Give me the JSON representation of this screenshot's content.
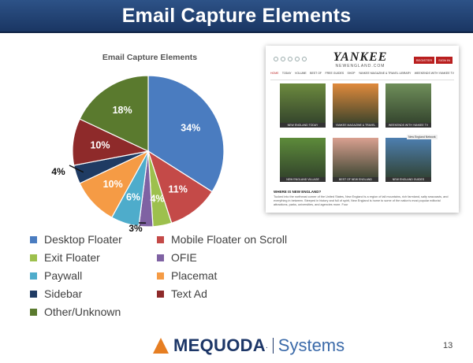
{
  "header": {
    "title": "Email Capture Elements"
  },
  "chart_data": {
    "type": "pie",
    "title": "Email Capture Elements",
    "start_angle_deg": 0,
    "direction": "clockwise",
    "legend_position": "bottom",
    "slices": [
      {
        "label": "Desktop Floater",
        "value": 34,
        "display": "34%",
        "color": "#4a7cc0"
      },
      {
        "label": "Mobile Floater on Scroll",
        "value": 11,
        "display": "11%",
        "color": "#c44a48"
      },
      {
        "label": "Exit Floater",
        "value": 4,
        "display": "4%",
        "color": "#9dc04d"
      },
      {
        "label": "OFIE",
        "value": 3,
        "display": "3%",
        "color": "#7f62a3"
      },
      {
        "label": "Paywall",
        "value": 6,
        "display": "6%",
        "color": "#4eaccb"
      },
      {
        "label": "Placemat",
        "value": 10,
        "display": "10%",
        "color": "#f59b45"
      },
      {
        "label": "Sidebar",
        "value": 4,
        "display": "4%",
        "color": "#1f3b63"
      },
      {
        "label": "Text Ad",
        "value": 10,
        "display": "10%",
        "color": "#8e2a2a"
      },
      {
        "label": "Other/Unknown",
        "value": 18,
        "display": "18%",
        "color": "#5a7a2e"
      }
    ]
  },
  "screenshot": {
    "logo": "YANKEE",
    "logo_sub": "NEWENGLAND.COM",
    "buttons": [
      "REGISTER",
      "SIGN IN"
    ],
    "nav": [
      "HOME",
      "TODAY",
      "VOLUME",
      "BEST OF",
      "FREE GUIDES",
      "SHOP",
      "YANKEE MAGAZINE & TRAVEL LIBRARY",
      "WEEKENDS WITH YANKEE TV"
    ],
    "tiles": [
      {
        "caption": "NEW ENGLAND TODAY",
        "color": "#6c8a3e"
      },
      {
        "caption": "YANKEE MAGAZINE & TRAVEL LIBRARY",
        "color": "#e08a3c"
      },
      {
        "caption": "WEEKENDS WITH YANKEE TV",
        "color": "#6f8f5a"
      },
      {
        "caption": "NEW ENGLAND VILLAGE",
        "color": "#5d8b3a"
      },
      {
        "caption": "BEST OF NEW ENGLAND",
        "color": "#d9a090"
      },
      {
        "caption": "NEW ENGLAND GUIDES",
        "color": "#4d7fb0"
      }
    ],
    "tag": "New England Network",
    "where_heading": "WHERE IS NEW ENGLAND?",
    "paragraph": "Tucked into the northeast corner of the United States, New England is a region of tall mountains, rich farmland, salty seacoasts, and everything in between. Steeped in history and full of spirit, New England is home to some of the nation's most popular editorial attractions, parks, universities, and agencies more. Four"
  },
  "footer": {
    "brand": "MEQUODA",
    "sub": "Systems",
    "page": "13"
  }
}
